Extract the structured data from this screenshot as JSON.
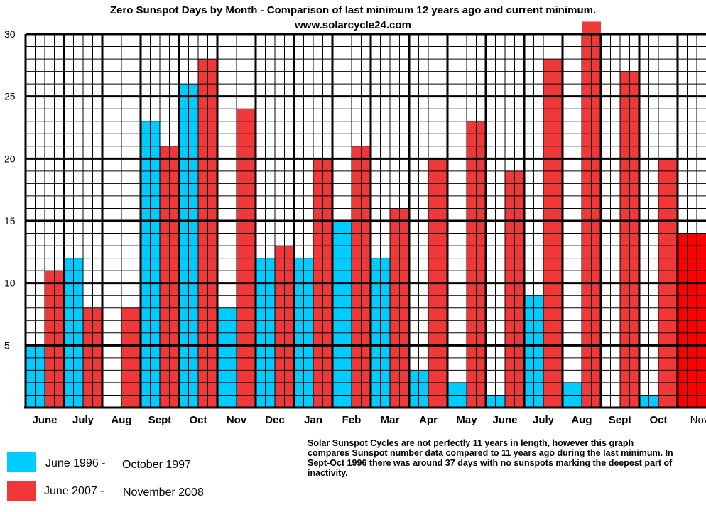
{
  "chart_data": {
    "type": "bar",
    "title": "Zero Sunspot Days by Month   - Comparison of last minimum 12 years ago and current minimum.",
    "subtitle": "www.solarcycle24.com",
    "categories": [
      "June",
      "July",
      "Aug",
      "Sept",
      "Oct",
      "Nov",
      "Dec",
      "Jan",
      "Feb",
      "Mar",
      "Apr",
      "May",
      "June",
      "July",
      "Aug",
      "Sept",
      "Oct",
      "Nov"
    ],
    "series": [
      {
        "color": "#00ccff",
        "values": [
          5,
          12,
          0,
          23,
          26,
          8,
          12,
          12,
          15,
          12,
          3,
          2,
          1,
          9,
          2,
          0,
          1,
          null
        ]
      },
      {
        "color": "#f03838",
        "values": [
          11,
          8,
          8,
          21,
          28,
          24,
          13,
          20,
          21,
          16,
          20,
          23,
          19,
          28,
          31,
          27,
          20,
          14
        ]
      }
    ],
    "ylim": [
      0,
      30
    ],
    "yticks": [
      5,
      10,
      15,
      20,
      25,
      30
    ],
    "grid": true,
    "highlight_last_category_color": "#ff0000"
  },
  "legend": [
    {
      "color": "#00ccff",
      "start": "June 1996 -",
      "end": "October 1997"
    },
    {
      "color": "#f03838",
      "start": "June 2007 -",
      "end": "November 2008"
    }
  ],
  "note": "Solar Sunspot Cycles are not perfectly 11 years in length, however this graph compares Sunspot number data compared to 11 years ago during the last minimum. In Sept-Oct 1996 there was around 37 days with no sunspots marking the deepest part of inactivity."
}
